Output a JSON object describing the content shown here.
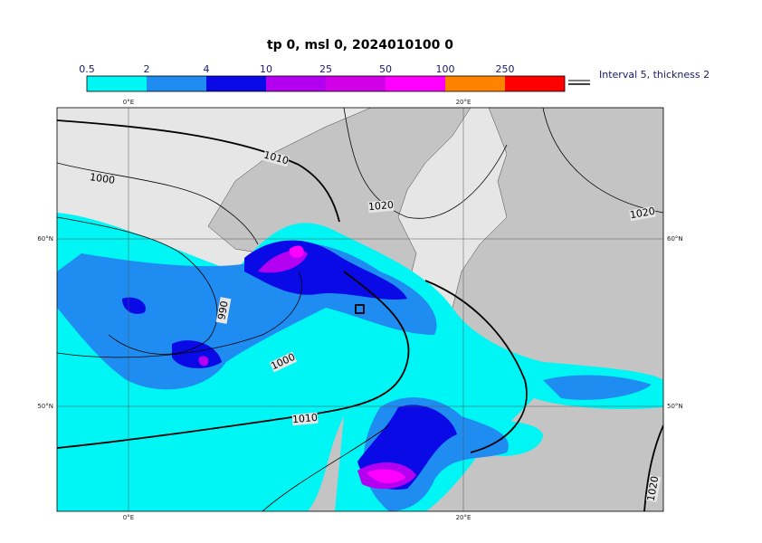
{
  "title": "tp 0, msl 0, 2024010100 0",
  "colorbar": {
    "labels": [
      "0.5",
      "2",
      "4",
      "10",
      "25",
      "50",
      "100",
      "250"
    ],
    "colors": [
      "#00f5f5",
      "#1e8cf0",
      "#0a0ae6",
      "#b400f0",
      "#d200e6",
      "#ff00ff",
      "#ff8200",
      "#ff0000"
    ]
  },
  "note": "Interval 5, thickness 2",
  "map": {
    "lon_labels": [
      "0°E",
      "20°E"
    ],
    "lat_labels": [
      "60°N",
      "50°N"
    ],
    "contour_labels": [
      "1010",
      "1000",
      "1020",
      "1020",
      "990",
      "1000",
      "1010",
      "1020"
    ]
  }
}
